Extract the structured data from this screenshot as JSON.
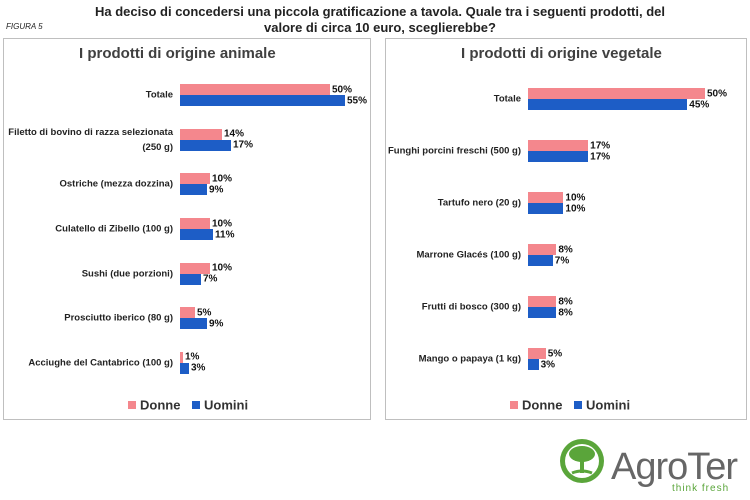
{
  "figure_label": "FIGURA 5",
  "title": "Ha deciso di concedersi una piccola gratificazione a tavola. Quale tra i seguenti prodotti, del valore di circa 10 euro, sceglierebbe?",
  "chart_data": [
    {
      "type": "bar",
      "orientation": "horizontal",
      "title": "I prodotti di origine animale",
      "categories": [
        "Totale",
        "Filetto di bovino di razza selezionata (250 g)",
        "Ostriche (mezza dozzina)",
        "Culatello di Zibello (100 g)",
        "Sushi (due porzioni)",
        "Prosciutto iberico (80 g)",
        "Acciughe del Cantabrico (100 g)"
      ],
      "series": [
        {
          "name": "Donne",
          "color": "#f4878d",
          "values": [
            50,
            14,
            10,
            10,
            10,
            5,
            1
          ],
          "value_labels": [
            "50%",
            "14%",
            "10%",
            "10%",
            "10%",
            "5%",
            "1%"
          ]
        },
        {
          "name": "Uomini",
          "color": "#1d5dc6",
          "values": [
            55,
            17,
            9,
            11,
            7,
            9,
            3
          ],
          "value_labels": [
            "55%",
            "17%",
            "9%",
            "11%",
            "7%",
            "9%",
            "3%"
          ]
        }
      ]
    },
    {
      "type": "bar",
      "orientation": "horizontal",
      "title": "I prodotti di origine vegetale",
      "categories": [
        "Totale",
        "Funghi porcini freschi (500 g)",
        "Tartufo nero (20 g)",
        "Marrone Glacés (100 g)",
        "Frutti di bosco (300 g)",
        "Mango o papaya (1 kg)"
      ],
      "series": [
        {
          "name": "Donne",
          "color": "#f4878d",
          "values": [
            50,
            17,
            10,
            8,
            8,
            5
          ],
          "value_labels": [
            "50%",
            "17%",
            "10%",
            "8%",
            "8%",
            "5%"
          ]
        },
        {
          "name": "Uomini",
          "color": "#1d5dc6",
          "values": [
            45,
            17,
            10,
            7,
            8,
            3
          ],
          "value_labels": [
            "45%",
            "17%",
            "10%",
            "7%",
            "8%",
            "3%"
          ]
        }
      ]
    }
  ],
  "logo": {
    "name": "AgroTer",
    "tagline": "think fresh"
  }
}
